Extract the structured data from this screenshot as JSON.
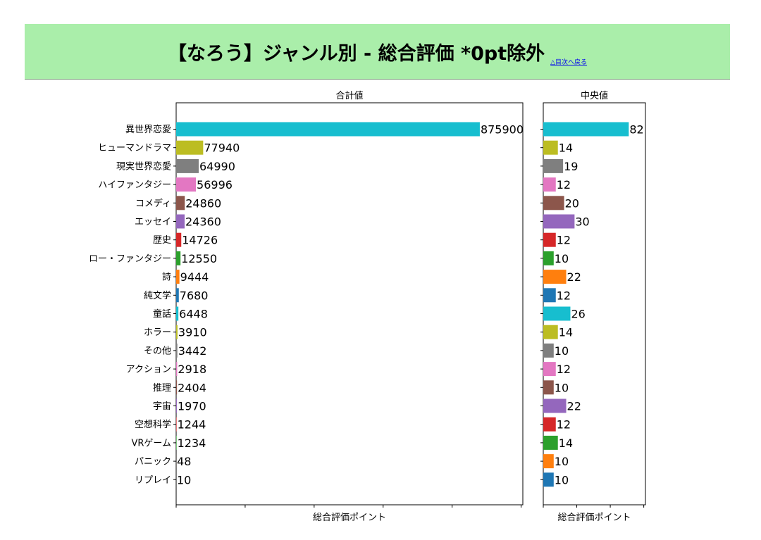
{
  "page": {
    "title": "【なろう】ジャンル別 - 総合評価 *0pt除外",
    "back_link": "△目次へ戻る"
  },
  "chart_data": [
    {
      "type": "bar",
      "orientation": "horizontal",
      "title": "合計値",
      "xlabel": "総合評価ポイント",
      "categories": [
        "異世界恋愛",
        "ヒューマンドラマ",
        "現実世界恋愛",
        "ハイファンタジー",
        "コメディ",
        "エッセイ",
        "歴史",
        "ロー・ファンタジー",
        "詩",
        "純文学",
        "童話",
        "ホラー",
        "その他",
        "アクション",
        "推理",
        "宇宙",
        "空想科学",
        "VRゲーム",
        "パニック",
        "リプレイ"
      ],
      "values": [
        875900,
        77940,
        64990,
        56996,
        24860,
        24360,
        14726,
        12550,
        9444,
        7680,
        6448,
        3910,
        3442,
        2918,
        2404,
        1970,
        1244,
        1234,
        48,
        10
      ],
      "xlim": [
        0,
        1000000
      ],
      "data_labels": true,
      "colors": [
        "#17becf",
        "#bcbd22",
        "#7f7f7f",
        "#e377c2",
        "#8c564b",
        "#9467bd",
        "#d62728",
        "#2ca02c",
        "#ff7f0e",
        "#1f77b4",
        "#17becf",
        "#bcbd22",
        "#7f7f7f",
        "#e377c2",
        "#8c564b",
        "#9467bd",
        "#d62728",
        "#2ca02c",
        "#ff7f0e",
        "#1f77b4"
      ]
    },
    {
      "type": "bar",
      "orientation": "horizontal",
      "title": "中央値",
      "xlabel": "総合評価ポイント",
      "categories": [
        "異世界恋愛",
        "ヒューマンドラマ",
        "現実世界恋愛",
        "ハイファンタジー",
        "コメディ",
        "エッセイ",
        "歴史",
        "ロー・ファンタジー",
        "詩",
        "純文学",
        "童話",
        "ホラー",
        "その他",
        "アクション",
        "推理",
        "宇宙",
        "空想科学",
        "VRゲーム",
        "パニック",
        "リプレイ"
      ],
      "values": [
        82,
        14,
        19,
        12,
        20,
        30,
        12,
        10,
        22,
        12,
        26,
        14,
        10,
        12,
        10,
        22,
        12,
        14,
        10,
        10
      ],
      "xlim": [
        0,
        98
      ],
      "data_labels": true,
      "colors": [
        "#17becf",
        "#bcbd22",
        "#7f7f7f",
        "#e377c2",
        "#8c564b",
        "#9467bd",
        "#d62728",
        "#2ca02c",
        "#ff7f0e",
        "#1f77b4",
        "#17becf",
        "#bcbd22",
        "#7f7f7f",
        "#e377c2",
        "#8c564b",
        "#9467bd",
        "#d62728",
        "#2ca02c",
        "#ff7f0e",
        "#1f77b4"
      ]
    }
  ]
}
